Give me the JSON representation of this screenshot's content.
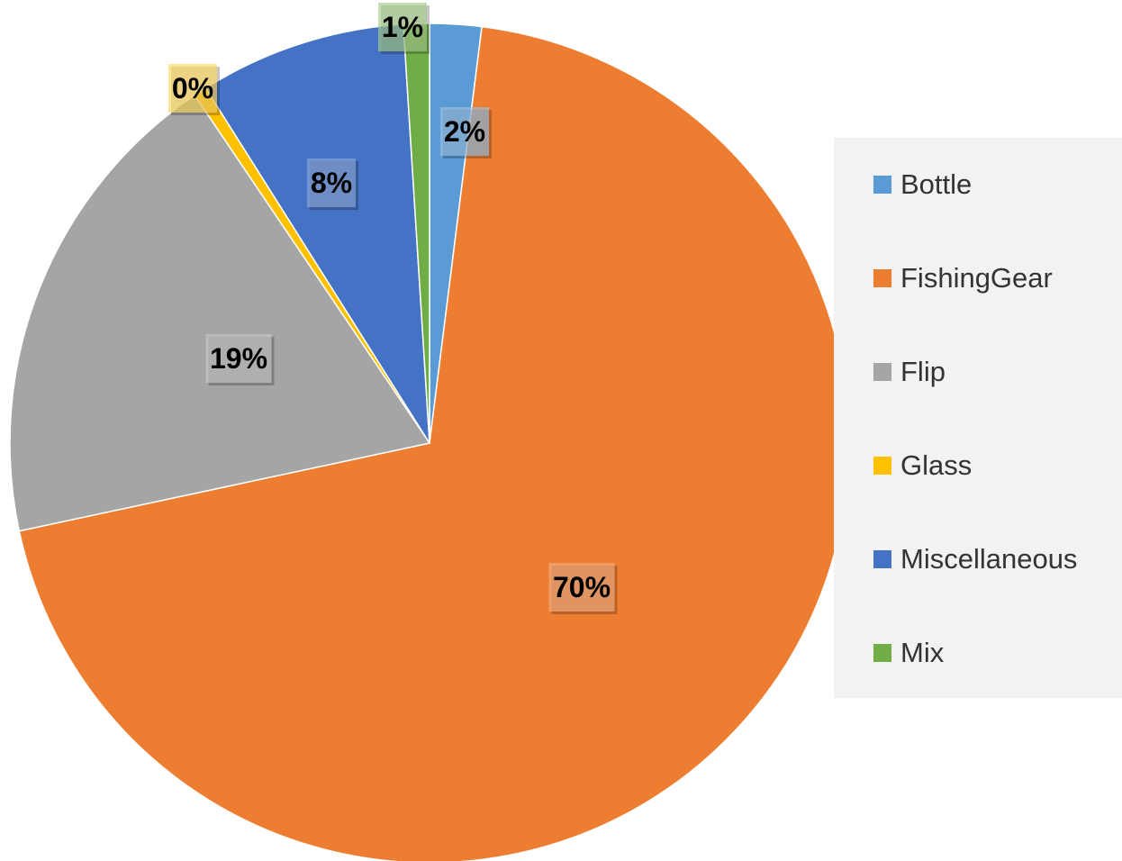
{
  "chart_data": {
    "type": "pie",
    "title": "",
    "start_angle_deg": 0,
    "direction": "clockwise",
    "slices": [
      {
        "name": "Bottle",
        "value": 2,
        "label": "2%",
        "color": "#5B9BD5"
      },
      {
        "name": "FishingGear",
        "value": 70,
        "label": "70%",
        "color": "#ED7D31"
      },
      {
        "name": "Flip",
        "value": 19,
        "label": "19%",
        "color": "#A5A5A5"
      },
      {
        "name": "Glass",
        "value": 0.5,
        "label": "0%",
        "color": "#FFC000"
      },
      {
        "name": "Miscellaneous",
        "value": 8,
        "label": "8%",
        "color": "#4472C4"
      },
      {
        "name": "Mix",
        "value": 1,
        "label": "1%",
        "color": "#70AD47"
      }
    ],
    "legend_position": "right",
    "data_labels": true
  }
}
